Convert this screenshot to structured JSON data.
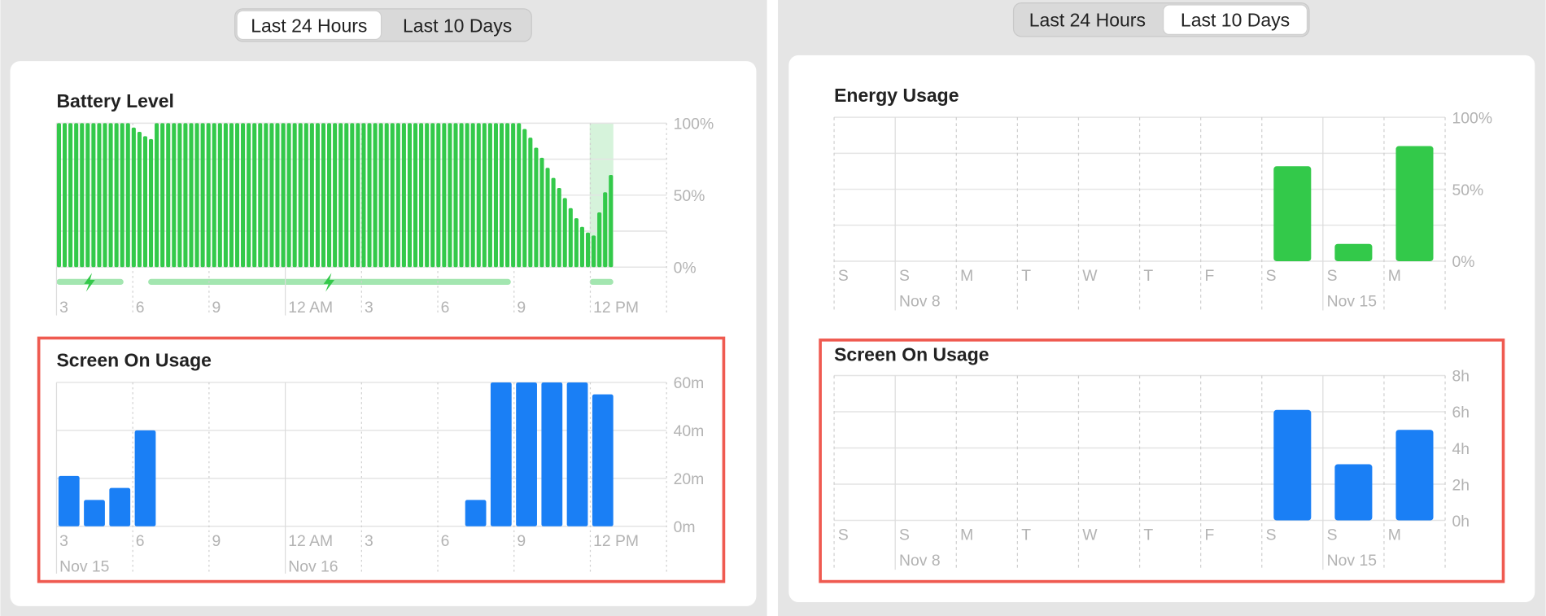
{
  "panels": [
    {
      "tabs": [
        "Last 24 Hours",
        "Last 10 Days"
      ],
      "selected_tab": 0,
      "charts": [
        {
          "type": "bar",
          "title": "Battery Level",
          "color": "#33c94a",
          "values": [
            100,
            100,
            100,
            100,
            100,
            100,
            100,
            100,
            100,
            100,
            100,
            100,
            100,
            97,
            94,
            91,
            89,
            100,
            100,
            100,
            100,
            100,
            100,
            100,
            100,
            100,
            100,
            100,
            100,
            100,
            100,
            100,
            100,
            100,
            100,
            100,
            100,
            100,
            100,
            100,
            100,
            100,
            100,
            100,
            100,
            100,
            100,
            100,
            100,
            100,
            100,
            100,
            100,
            100,
            100,
            100,
            100,
            100,
            100,
            100,
            100,
            100,
            100,
            100,
            100,
            100,
            100,
            100,
            100,
            100,
            100,
            100,
            100,
            100,
            100,
            100,
            100,
            100,
            100,
            100,
            100,
            96,
            90,
            83,
            76,
            69,
            62,
            55,
            48,
            41,
            34,
            28,
            24,
            22,
            38,
            52,
            64
          ],
          "ylim": [
            0,
            100
          ],
          "yticks": [
            {
              "value": 0,
              "label": "0%"
            },
            {
              "value": 50,
              "label": "50%"
            },
            {
              "value": 100,
              "label": "100%"
            }
          ],
          "xtick_labels": [
            "3",
            "6",
            "9",
            "12 AM",
            "3",
            "6",
            "9",
            "12 PM"
          ]
        },
        {
          "type": "bar",
          "title": "Screen On Usage",
          "color": "#1a7ff5",
          "values": [
            21,
            11,
            16,
            40,
            0,
            0,
            0,
            0,
            0,
            0,
            0,
            0,
            0,
            0,
            0,
            0,
            11,
            60,
            60,
            60,
            60,
            55,
            0,
            0
          ],
          "ylim": [
            0,
            60
          ],
          "yticks": [
            {
              "value": 0,
              "label": "0m"
            },
            {
              "value": 20,
              "label": "20m"
            },
            {
              "value": 40,
              "label": "40m"
            },
            {
              "value": 60,
              "label": "60m"
            }
          ],
          "xtick_labels": [
            "3",
            "6",
            "9",
            "12 AM",
            "3",
            "6",
            "9",
            "12 PM"
          ],
          "date_labels": [
            "Nov 15",
            "Nov 16"
          ]
        }
      ]
    },
    {
      "tabs": [
        "Last 24 Hours",
        "Last 10 Days"
      ],
      "selected_tab": 1,
      "charts": [
        {
          "type": "bar",
          "title": "Energy Usage",
          "color": "#33c94a",
          "categories": [
            "S",
            "S",
            "M",
            "T",
            "W",
            "T",
            "F",
            "S",
            "S",
            "M"
          ],
          "values": [
            null,
            null,
            null,
            null,
            null,
            null,
            null,
            66,
            12,
            80
          ],
          "ylim": [
            0,
            100
          ],
          "yticks": [
            {
              "value": 0,
              "label": "0%"
            },
            {
              "value": 50,
              "label": "50%"
            },
            {
              "value": 100,
              "label": "100%"
            }
          ],
          "date_labels": [
            "Nov 8",
            "Nov 15"
          ]
        },
        {
          "type": "bar",
          "title": "Screen On Usage",
          "color": "#1a7ff5",
          "categories": [
            "S",
            "S",
            "M",
            "T",
            "W",
            "T",
            "F",
            "S",
            "S",
            "M"
          ],
          "values": [
            null,
            null,
            null,
            null,
            null,
            null,
            null,
            6.1,
            3.1,
            5.0
          ],
          "ylim": [
            0,
            8
          ],
          "yticks": [
            {
              "value": 0,
              "label": "0h"
            },
            {
              "value": 2,
              "label": "2h"
            },
            {
              "value": 4,
              "label": "4h"
            },
            {
              "value": 6,
              "label": "6h"
            },
            {
              "value": 8,
              "label": "8h"
            }
          ],
          "date_labels": [
            "Nov 8",
            "Nov 15"
          ]
        }
      ]
    }
  ]
}
